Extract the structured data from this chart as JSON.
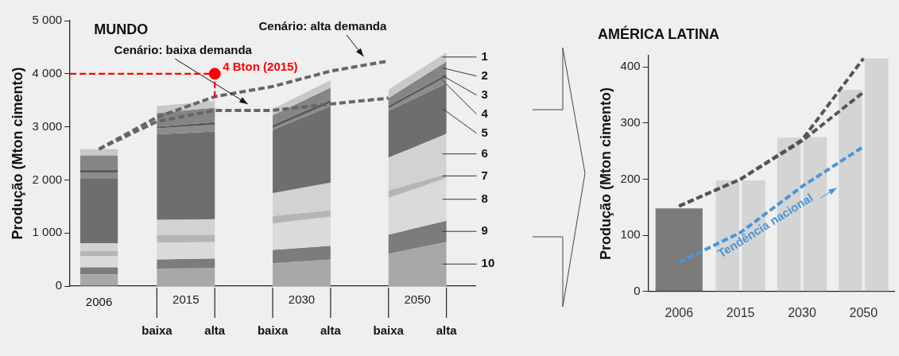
{
  "chart_data": [
    {
      "type": "area",
      "title": "MUNDO",
      "ylabel": "Produção (Mton cimento)",
      "stacked": true,
      "categories": [
        "2006",
        "baixa",
        "alta",
        "baixa",
        "alta",
        "baixa",
        "alta"
      ],
      "ylim": [
        0,
        5000
      ],
      "yticks": [
        0,
        {
          "value": 1000,
          "label": "1 000"
        },
        {
          "value": 2000,
          "label": "2 000"
        },
        {
          "value": 3000,
          "label": "3 000"
        },
        {
          "value": 4000,
          "label": "4 000"
        },
        {
          "value": 5000,
          "label": "5 000"
        }
      ],
      "series": [
        {
          "type": "bar",
          "color": "#a8a8a8",
          "values": [
            220,
            null,
            null,
            null,
            null,
            null,
            null
          ]
        },
        {
          "type": "bar",
          "color": "#7c7c7c",
          "values": [
            130,
            null,
            null,
            null,
            null,
            null,
            null
          ]
        },
        {
          "type": "bar",
          "color": "#dadada",
          "values": [
            220,
            null,
            null,
            null,
            null,
            null,
            null
          ]
        },
        {
          "type": "bar",
          "color": "#b5b5b5",
          "values": [
            90,
            null,
            null,
            null,
            null,
            null,
            null
          ]
        },
        {
          "type": "bar",
          "color": "#d2d2d2",
          "values": [
            150,
            null,
            null,
            null,
            null,
            null,
            null
          ]
        },
        {
          "type": "bar",
          "color": "#6e6e6e",
          "values": [
            1210,
            null,
            null,
            null,
            null,
            null,
            null
          ]
        },
        {
          "type": "bar",
          "color": "#8c8c8c",
          "values": [
            120,
            null,
            null,
            null,
            null,
            null,
            null
          ]
        },
        {
          "type": "bar",
          "color": "#5a5a5a",
          "values": [
            50,
            null,
            null,
            null,
            null,
            null,
            null
          ]
        },
        {
          "type": "bar",
          "color": "#858585",
          "values": [
            270,
            null,
            null,
            null,
            null,
            null,
            null
          ]
        },
        {
          "type": "bar",
          "color": "#c8c8c8",
          "values": [
            120,
            null,
            null,
            null,
            null,
            null,
            null
          ]
        },
        {
          "name": "10",
          "color": "#a8a8a8",
          "values": [
            null,
            330,
            340,
            430,
            500,
            610,
            830
          ]
        },
        {
          "name": "9",
          "color": "#7c7c7c",
          "values": [
            null,
            170,
            180,
            250,
            260,
            360,
            400
          ]
        },
        {
          "name": "8",
          "color": "#dadada",
          "values": [
            null,
            320,
            310,
            500,
            550,
            690,
            810
          ]
        },
        {
          "name": "7",
          "color": "#b5b5b5",
          "values": [
            null,
            140,
            140,
            140,
            120,
            140,
            70
          ]
        },
        {
          "name": "6",
          "color": "#d2d2d2",
          "values": [
            null,
            290,
            290,
            430,
            520,
            620,
            760
          ]
        },
        {
          "name": "5",
          "color": "#6e6e6e",
          "values": [
            null,
            1610,
            1650,
            1190,
            1440,
            880,
            950
          ]
        },
        {
          "name": "4",
          "color": "#8c8c8c",
          "values": [
            null,
            110,
            130,
            40,
            60,
            50,
            120
          ]
        },
        {
          "name": "3",
          "color": "#5a5a5a",
          "values": [
            null,
            30,
            50,
            50,
            60,
            50,
            50
          ]
        },
        {
          "name": "2",
          "color": "#858585",
          "values": [
            null,
            260,
            270,
            190,
            230,
            140,
            240
          ]
        },
        {
          "name": "1",
          "color": "#c8c8c8",
          "values": [
            null,
            130,
            130,
            120,
            140,
            160,
            170
          ]
        },
        {
          "type": "line",
          "color": "#666666",
          "line_style": "dashed",
          "values": [
            2580,
            3180,
            3570,
            3760,
            4050,
            4240,
            null
          ]
        },
        {
          "type": "line",
          "color": "#666666",
          "line_style": "dashed",
          "values": [
            2580,
            3100,
            3310,
            3310,
            3430,
            3540,
            null
          ]
        },
        {
          "type": "scatter",
          "color": "#ff0000",
          "marker": "circle",
          "x": [
            "alta"
          ],
          "values": [
            4000
          ]
        }
      ],
      "ref_lines": [
        {
          "axis": "y",
          "value": 4000,
          "label": "4 Bton (2015)",
          "color": "#ff0000",
          "line_style": "dashed"
        }
      ],
      "annotations": [
        "2015",
        "2030",
        "2050",
        "Cenário: baixa demanda",
        "Cenário: alta demanda"
      ],
      "grid": false,
      "legend": false
    },
    {
      "type": "bar",
      "title": "AMÉRICA LATINA",
      "ylabel": "Produção (Mton cimento)",
      "categories": [
        "2006",
        "2015",
        "2030",
        "2050"
      ],
      "ylim": [
        0,
        420
      ],
      "yticks": [
        0,
        100,
        200,
        300,
        400
      ],
      "series": [
        {
          "colors": [
            "#7b7b7b",
            "#d4d4d4",
            "#d4d4d4",
            "#d4d4d4"
          ],
          "values": [
            148,
            198,
            274,
            359
          ]
        },
        {
          "color": "#d4d4d4",
          "values": [
            null,
            198,
            275,
            415
          ]
        },
        {
          "type": "line",
          "color": "#555555",
          "line_style": "dashed",
          "values": [
            152,
            200,
            270,
            415
          ]
        },
        {
          "type": "line",
          "color": "#555555",
          "line_style": "dashed",
          "values": [
            152,
            200,
            268,
            355
          ]
        },
        {
          "type": "line",
          "name": "Tendência nacional",
          "color": "#4a95d8",
          "line_style": "dashed",
          "values": [
            52,
            105,
            187,
            258
          ]
        }
      ],
      "grid": false,
      "legend": false
    }
  ]
}
